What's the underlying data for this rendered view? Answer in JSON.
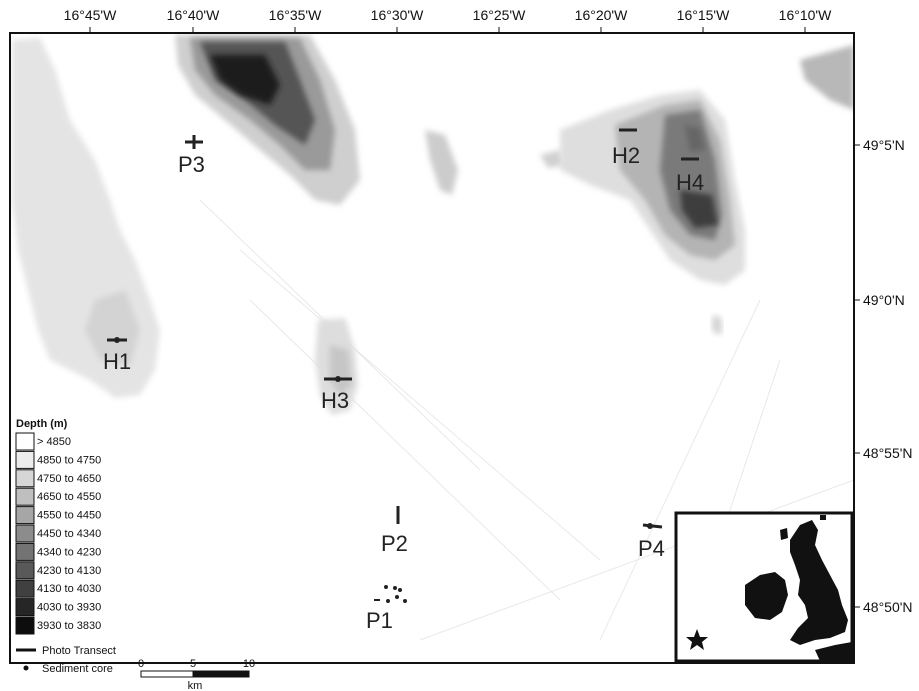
{
  "map": {
    "longitude_labels": [
      "16°45'W",
      "16°40'W",
      "16°35'W",
      "16°30'W",
      "16°25'W",
      "16°20'W",
      "16°15'W",
      "16°10'W"
    ],
    "latitude_labels": [
      "49°5'N",
      "49°0'N",
      "48°55'N",
      "48°50'N"
    ],
    "sites": [
      {
        "id": "P3",
        "label": "P3"
      },
      {
        "id": "H2",
        "label": "H2"
      },
      {
        "id": "H4",
        "label": "H4"
      },
      {
        "id": "H1",
        "label": "H1"
      },
      {
        "id": "H3",
        "label": "H3"
      },
      {
        "id": "P2",
        "label": "P2"
      },
      {
        "id": "P4",
        "label": "P4"
      },
      {
        "id": "P1",
        "label": "P1"
      }
    ]
  },
  "legend": {
    "title": "Depth (m)",
    "classes": [
      {
        "label": "> 4850",
        "color": "#ffffff"
      },
      {
        "label": "4850 to 4750",
        "color": "#ececec"
      },
      {
        "label": "4750 to 4650",
        "color": "#d6d6d6"
      },
      {
        "label": "4650 to 4550",
        "color": "#bfbfbf"
      },
      {
        "label": "4550 to 4450",
        "color": "#a6a6a6"
      },
      {
        "label": "4450 to 4340",
        "color": "#8c8c8c"
      },
      {
        "label": "4340 to 4230",
        "color": "#737373"
      },
      {
        "label": "4230 to 4130",
        "color": "#595959"
      },
      {
        "label": "4130 to 4030",
        "color": "#404040"
      },
      {
        "label": "4030 to 3930",
        "color": "#262626"
      },
      {
        "label": "3930 to 3830",
        "color": "#0d0d0d"
      }
    ],
    "photo_transect": "Photo Transect",
    "sediment_core": "Sediment core",
    "scale_labels": [
      "0",
      "5",
      "10"
    ],
    "scale_unit": "km"
  }
}
